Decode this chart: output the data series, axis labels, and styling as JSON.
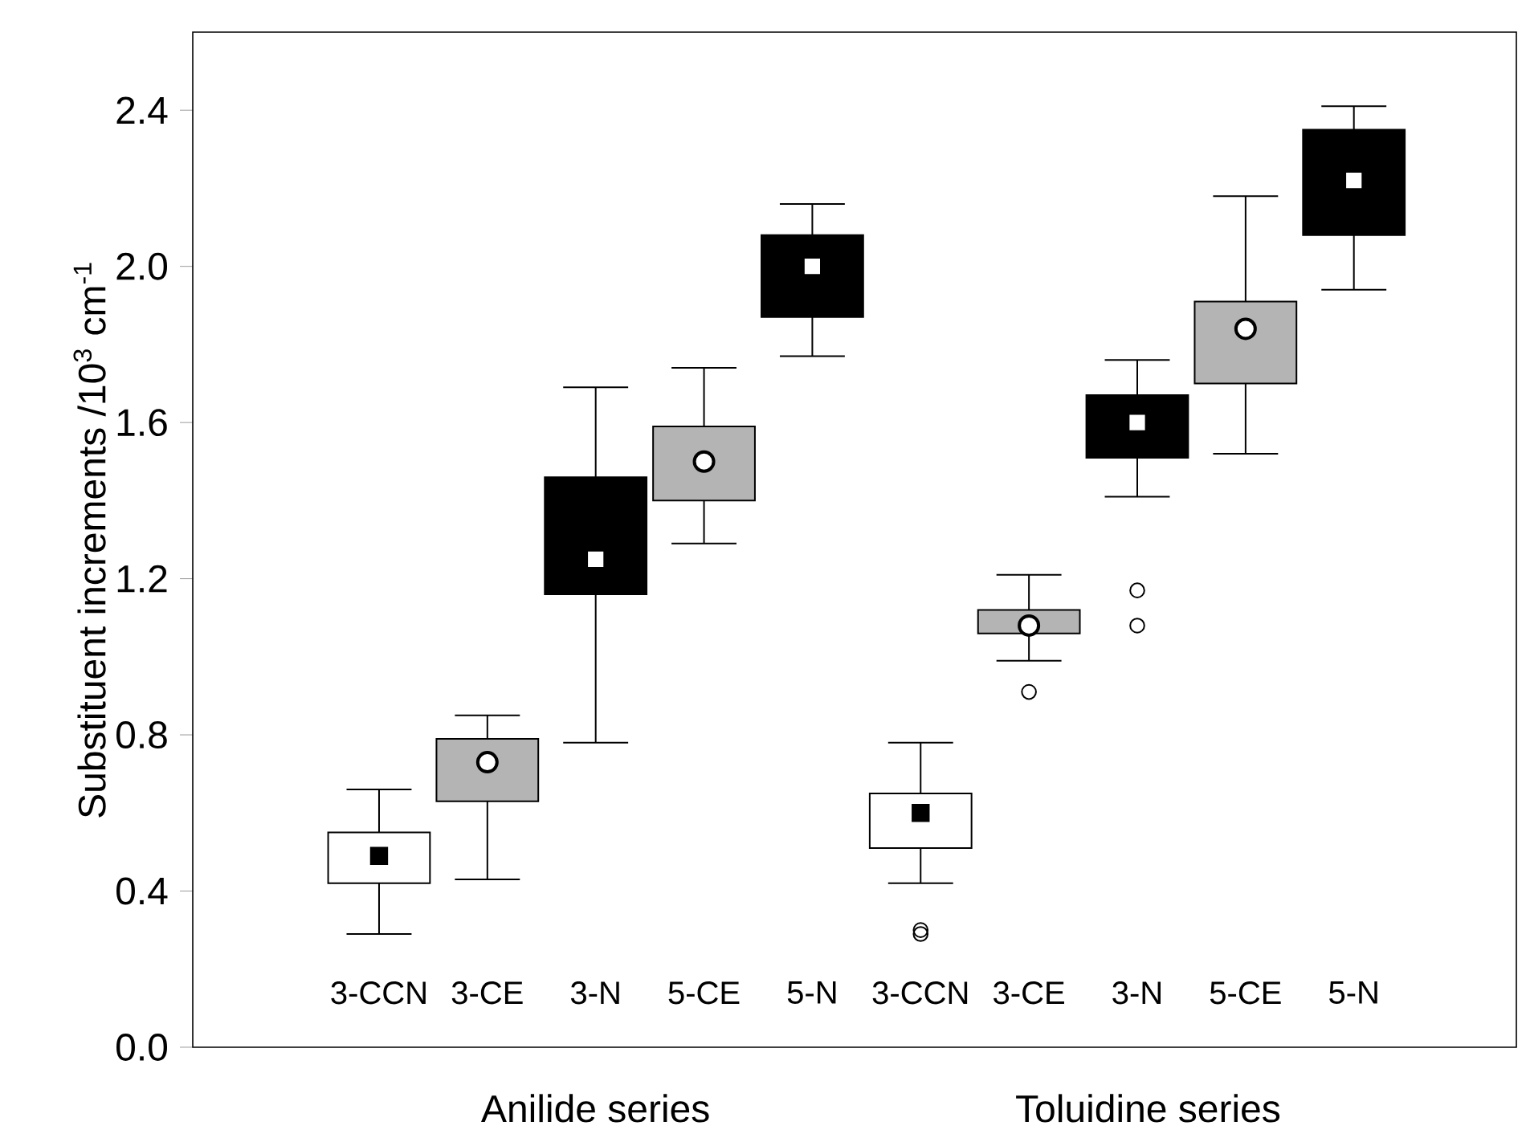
{
  "chart_data": {
    "type": "box",
    "ylabel": "Substituent increments  /10$^{3}$ cm$^{-1}$",
    "categories": [
      "3-CCN",
      "3-CE",
      "3-N",
      "5-CE",
      "5-N",
      "3-CCN",
      "3-CE",
      "3-N",
      "5-CE",
      "5-N"
    ],
    "colors": [
      "#ffffff",
      "#b4b4b4",
      "#000000",
      "#b4b4b4",
      "#000000",
      "#ffffff",
      "#b4b4b4",
      "#000000",
      "#b4b4b4",
      "#000000"
    ],
    "boxes": [
      {
        "low": 0.29,
        "q1": 0.42,
        "median": 0.49,
        "q3": 0.55,
        "high": 0.66
      },
      {
        "low": 0.43,
        "q1": 0.63,
        "median": 0.73,
        "q3": 0.79,
        "high": 0.85
      },
      {
        "low": 0.78,
        "q1": 1.16,
        "median": 1.25,
        "q3": 1.46,
        "high": 1.69
      },
      {
        "low": 1.29,
        "q1": 1.4,
        "median": 1.5,
        "q3": 1.59,
        "high": 1.74
      },
      {
        "low": 1.77,
        "q1": 1.87,
        "median": 2.0,
        "q3": 2.08,
        "high": 2.16
      },
      {
        "low": 0.42,
        "q1": 0.51,
        "median": 0.6,
        "q3": 0.65,
        "high": 0.78,
        "outliers": [
          0.29,
          0.3
        ]
      },
      {
        "low": 0.99,
        "q1": 1.06,
        "median": 1.08,
        "q3": 1.12,
        "high": 1.21,
        "outliers": [
          0.91
        ]
      },
      {
        "low": 1.41,
        "q1": 1.51,
        "median": 1.6,
        "q3": 1.67,
        "high": 1.76,
        "outliers": [
          1.08,
          1.17
        ]
      },
      {
        "low": 1.52,
        "q1": 1.7,
        "median": 1.84,
        "q3": 1.91,
        "high": 2.18
      },
      {
        "low": 1.94,
        "q1": 2.08,
        "median": 2.22,
        "q3": 2.35,
        "high": 2.41
      }
    ],
    "ylim": [
      0,
      2.6
    ],
    "yticks": [
      {
        "value": 0,
        "label": "0.0"
      },
      {
        "value": 0.4,
        "label": "0.4"
      },
      {
        "value": 0.8,
        "label": "0.8"
      },
      {
        "value": 1.2,
        "label": "1.2"
      },
      {
        "value": 1.6,
        "label": "1.6"
      },
      {
        "value": 2.0,
        "label": "2.0"
      },
      {
        "value": 2.4,
        "label": "2.4"
      }
    ],
    "annotations": [
      "Anilide series",
      "Toluidine series"
    ],
    "grid": false
  }
}
